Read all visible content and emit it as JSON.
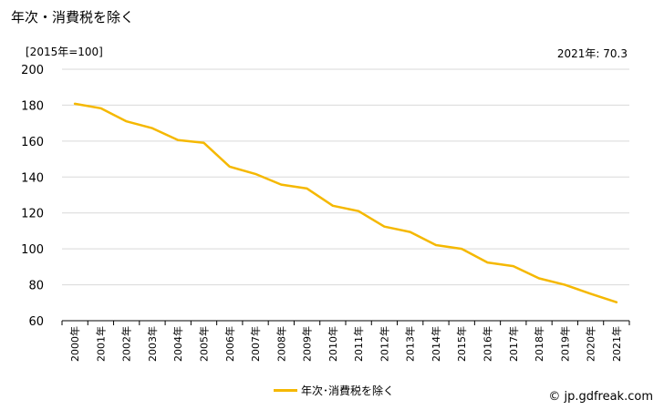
{
  "title": "年次・消費税を除く",
  "unit_label": "[2015年=100]",
  "latest_label": "2021年: 70.3",
  "source": "© jp.gdfreak.com",
  "colors": {
    "line": "#f5b800",
    "grid": "#d9d9d9",
    "axis": "#000000"
  },
  "chart_data": {
    "type": "line",
    "categories": [
      "2000年",
      "2001年",
      "2002年",
      "2003年",
      "2004年",
      "2005年",
      "2006年",
      "2007年",
      "2008年",
      "2009年",
      "2010年",
      "2011年",
      "2012年",
      "2013年",
      "2014年",
      "2015年",
      "2016年",
      "2017年",
      "2018年",
      "2019年",
      "2020年",
      "2021年"
    ],
    "series": [
      {
        "name": "年次･消費税を除く",
        "values": [
          180.8,
          178.3,
          171.0,
          167.2,
          160.6,
          159.0,
          145.8,
          141.7,
          135.8,
          133.6,
          124.0,
          121.0,
          112.4,
          109.4,
          102.1,
          100.0,
          92.4,
          90.4,
          83.6,
          80.0,
          75.0,
          70.3
        ]
      }
    ],
    "ylim": [
      60,
      200
    ],
    "yticks": [
      60,
      80,
      100,
      120,
      140,
      160,
      180,
      200
    ],
    "grid": true,
    "legend": "bottom"
  }
}
